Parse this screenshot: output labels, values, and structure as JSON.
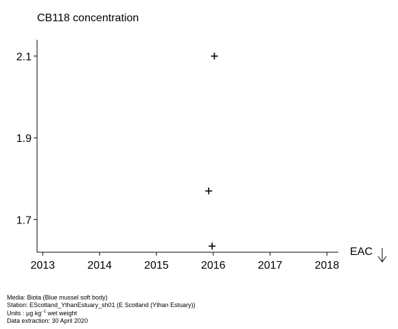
{
  "chart_data": {
    "type": "scatter",
    "title": "CB118 concentration",
    "xlabel": "",
    "ylabel": "",
    "xlim": [
      2012.9,
      2018.2
    ],
    "ylim": [
      1.62,
      2.14
    ],
    "xticks": [
      2013,
      2014,
      2015,
      2016,
      2017,
      2018
    ],
    "yticks": [
      1.7,
      1.9,
      2.1
    ],
    "ytick_labels": [
      "1.7",
      "1.9",
      "2.1"
    ],
    "grid": false,
    "marker": "plus",
    "points": [
      {
        "x": 2016.02,
        "y": 2.1
      },
      {
        "x": 2015.92,
        "y": 1.77
      },
      {
        "x": 2015.98,
        "y": 1.635
      }
    ],
    "annotations": [
      {
        "text": "EAC",
        "symbol": "down-arrow"
      }
    ]
  },
  "footer": {
    "media": "Media: Biota (Blue mussel soft body)",
    "station": "Station: EScotland_YthanEstuary_sh01 (E Scotland (Ythan Estuary))",
    "units_prefix": "Units : µg kg",
    "units_exponent": "−1",
    "units_suffix": " wet weight",
    "extraction": "Data extraction: 30 April 2020"
  }
}
